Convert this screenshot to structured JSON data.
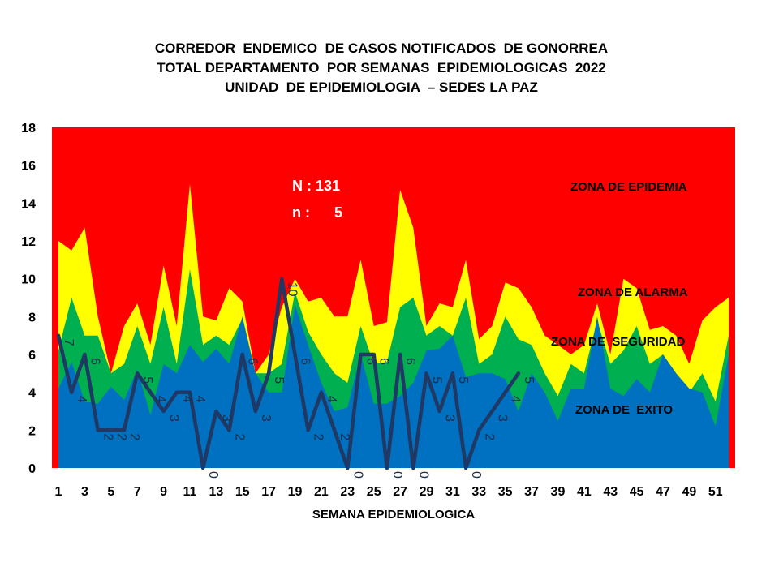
{
  "title_lines": [
    "CORREDOR  ENDEMICO  DE CASOS NOTIFICADOS  DE GONORREA",
    "TOTAL DEPARTAMENTO  POR SEMANAS  EPIDEMIOLOGICAS  2022",
    "UNIDAD  DE EPIDEMIOLOGIA  – SEDES LA PAZ"
  ],
  "stats": {
    "big_n": "N : 131",
    "small_n": "n :      5"
  },
  "zones": {
    "epidemia": "ZONA DE EPIDEMIA",
    "alarma": "ZONA DE ALARMA",
    "seguridad": "ZONA DE  SEGURIDAD",
    "exito": "ZONA DE  EXITO"
  },
  "colors": {
    "epidemia": "#ff0000",
    "alarma": "#ffff00",
    "seguridad": "#00b050",
    "exito": "#0070c0",
    "cases_line": "#1f3864",
    "title_text": "#000000",
    "stats_text": "#ffffff"
  },
  "chart_data": {
    "type": "area",
    "xlabel": "SEMANA EPIDEMIOLOGICA",
    "ylabel": "",
    "ylim": [
      0,
      18
    ],
    "yticks": [
      0,
      2,
      4,
      6,
      8,
      10,
      12,
      14,
      16,
      18
    ],
    "x": [
      1,
      2,
      3,
      4,
      5,
      6,
      7,
      8,
      9,
      10,
      11,
      12,
      13,
      14,
      15,
      16,
      17,
      18,
      19,
      20,
      21,
      22,
      23,
      24,
      25,
      26,
      27,
      28,
      29,
      30,
      31,
      32,
      33,
      34,
      35,
      36,
      37,
      38,
      39,
      40,
      41,
      42,
      43,
      44,
      45,
      46,
      47,
      48,
      49,
      50,
      51,
      52
    ],
    "xticks": [
      1,
      3,
      5,
      7,
      9,
      11,
      13,
      15,
      17,
      19,
      21,
      23,
      25,
      27,
      29,
      31,
      33,
      35,
      37,
      39,
      41,
      43,
      45,
      47,
      49,
      51
    ],
    "series": [
      {
        "name": "ZONA DE  EXITO",
        "values": [
          4.2,
          5.6,
          3.5,
          3.4,
          4.3,
          3.6,
          5.2,
          2.8,
          5.5,
          5.0,
          6.5,
          5.6,
          6.3,
          5.5,
          8.0,
          5.0,
          4.0,
          4.0,
          8.6,
          6.5,
          4.5,
          3.0,
          3.2,
          6.0,
          3.4,
          3.4,
          3.8,
          4.5,
          6.2,
          6.3,
          7.0,
          4.8,
          5.0,
          5.0,
          4.7,
          3.0,
          5.0,
          4.0,
          2.5,
          4.2,
          4.2,
          8.0,
          4.2,
          3.8,
          4.7,
          4.0,
          6.0,
          5.0,
          4.2,
          4.0,
          2.2,
          6.0
        ]
      },
      {
        "name": "ZONA DE  SEGURIDAD",
        "values": [
          6.2,
          9.0,
          7.0,
          7.0,
          5.0,
          5.5,
          7.5,
          5.5,
          8.5,
          5.5,
          10.5,
          6.5,
          7.0,
          6.5,
          7.9,
          5.0,
          5.0,
          5.5,
          9.3,
          7.2,
          6.0,
          5.0,
          4.5,
          7.5,
          5.5,
          5.6,
          8.5,
          9.0,
          7.0,
          7.5,
          7.0,
          9.0,
          5.5,
          6.0,
          8.0,
          6.8,
          6.5,
          5.0,
          3.8,
          5.5,
          5.0,
          7.8,
          5.5,
          6.2,
          7.5,
          5.5,
          6.0,
          5.0,
          4.0,
          5.0,
          3.5,
          7.0
        ]
      },
      {
        "name": "ZONA DE ALARMA",
        "values": [
          12.0,
          11.5,
          12.7,
          8.0,
          5.0,
          7.5,
          8.7,
          6.5,
          10.7,
          7.5,
          15.0,
          8.0,
          7.8,
          9.5,
          8.8,
          5.0,
          6.0,
          8.5,
          10.0,
          8.8,
          9.0,
          8.0,
          8.0,
          11.0,
          7.5,
          7.7,
          14.7,
          12.7,
          7.5,
          8.7,
          8.5,
          11.0,
          6.8,
          7.5,
          9.8,
          9.5,
          8.5,
          7.0,
          6.5,
          6.0,
          6.5,
          8.7,
          6.0,
          10.0,
          9.5,
          7.3,
          7.5,
          7.0,
          5.5,
          7.8,
          8.5,
          9.0
        ]
      },
      {
        "name": "ZONA DE EPIDEMIA",
        "values": [
          18,
          18,
          18,
          18,
          18,
          18,
          18,
          18,
          18,
          18,
          18,
          18,
          18,
          18,
          18,
          18,
          18,
          18,
          18,
          18,
          18,
          18,
          18,
          18,
          18,
          18,
          18,
          18,
          18,
          18,
          18,
          18,
          18,
          18,
          18,
          18,
          18,
          18,
          18,
          18,
          18,
          18,
          18,
          18,
          18,
          18,
          18,
          18,
          18,
          18,
          18,
          18
        ]
      },
      {
        "name": "2022",
        "x": [
          1,
          2,
          3,
          4,
          5,
          6,
          7,
          8,
          9,
          10,
          11,
          12,
          13,
          14,
          15,
          16,
          17,
          18,
          19,
          20,
          21,
          22,
          23,
          24,
          25,
          26,
          27,
          28,
          29,
          30,
          31,
          32,
          33,
          34,
          35,
          36
        ],
        "values": [
          7,
          4,
          6,
          2,
          2,
          2,
          5,
          4,
          3,
          4,
          4,
          0,
          3,
          2,
          6,
          3,
          5,
          10,
          6,
          2,
          4,
          2,
          0,
          6,
          6,
          0,
          6,
          0,
          5,
          3,
          5,
          0,
          2,
          3,
          4,
          5
        ]
      }
    ]
  }
}
